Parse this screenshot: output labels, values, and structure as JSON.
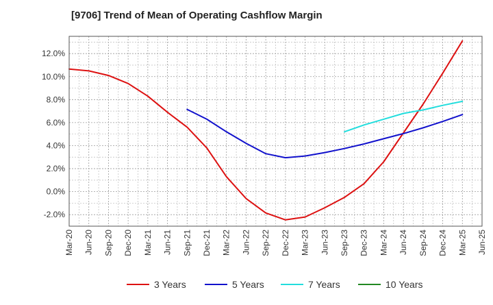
{
  "chart_data": {
    "type": "line",
    "title": "[9706]  Trend of Mean of Operating Cashflow Margin",
    "xlabel": "",
    "ylabel": "",
    "x_ticks": [
      "Mar-20",
      "Jun-20",
      "Sep-20",
      "Dec-20",
      "Mar-21",
      "Jun-21",
      "Sep-21",
      "Dec-21",
      "Mar-22",
      "Jun-22",
      "Sep-22",
      "Dec-22",
      "Mar-23",
      "Jun-23",
      "Sep-23",
      "Dec-23",
      "Mar-24",
      "Jun-24",
      "Sep-24",
      "Dec-24",
      "Mar-25",
      "Jun-25"
    ],
    "y_ticks": [
      "-2.0%",
      "0.0%",
      "2.0%",
      "4.0%",
      "6.0%",
      "8.0%",
      "10.0%",
      "12.0%"
    ],
    "y_tick_values": [
      -2,
      0,
      2,
      4,
      6,
      8,
      10,
      12
    ],
    "ylim": [
      -3,
      13.5
    ],
    "grid": true,
    "legend_position": "bottom",
    "series": [
      {
        "name": "3 Years",
        "color": "#dd1111",
        "x": [
          "Mar-20",
          "Jun-20",
          "Sep-20",
          "Dec-20",
          "Mar-21",
          "Jun-21",
          "Sep-21",
          "Dec-21",
          "Mar-22",
          "Jun-22",
          "Sep-22",
          "Dec-22",
          "Mar-23",
          "Jun-23",
          "Sep-23",
          "Dec-23",
          "Mar-24",
          "Jun-24",
          "Sep-24",
          "Dec-24",
          "Mar-25"
        ],
        "values": [
          10.65,
          10.5,
          10.1,
          9.4,
          8.3,
          6.9,
          5.6,
          3.8,
          1.3,
          -0.6,
          -1.85,
          -2.45,
          -2.2,
          -1.4,
          -0.5,
          0.7,
          2.6,
          5.1,
          7.6,
          10.3,
          13.1
        ]
      },
      {
        "name": "5 Years",
        "color": "#1111cc",
        "x": [
          "Sep-21",
          "Dec-21",
          "Mar-22",
          "Jun-22",
          "Sep-22",
          "Dec-22",
          "Mar-23",
          "Jun-23",
          "Sep-23",
          "Dec-23",
          "Mar-24",
          "Jun-24",
          "Sep-24",
          "Dec-24",
          "Mar-25"
        ],
        "values": [
          7.15,
          6.3,
          5.2,
          4.2,
          3.3,
          2.95,
          3.1,
          3.4,
          3.75,
          4.15,
          4.6,
          5.05,
          5.55,
          6.1,
          6.7
        ]
      },
      {
        "name": "7 Years",
        "color": "#22dddd",
        "x": [
          "Sep-23",
          "Dec-23",
          "Mar-24",
          "Jun-24",
          "Sep-24",
          "Dec-24",
          "Mar-25"
        ],
        "values": [
          5.2,
          5.8,
          6.3,
          6.8,
          7.1,
          7.5,
          7.85
        ]
      },
      {
        "name": "10 Years",
        "color": "#228822",
        "x": [],
        "values": []
      }
    ]
  }
}
